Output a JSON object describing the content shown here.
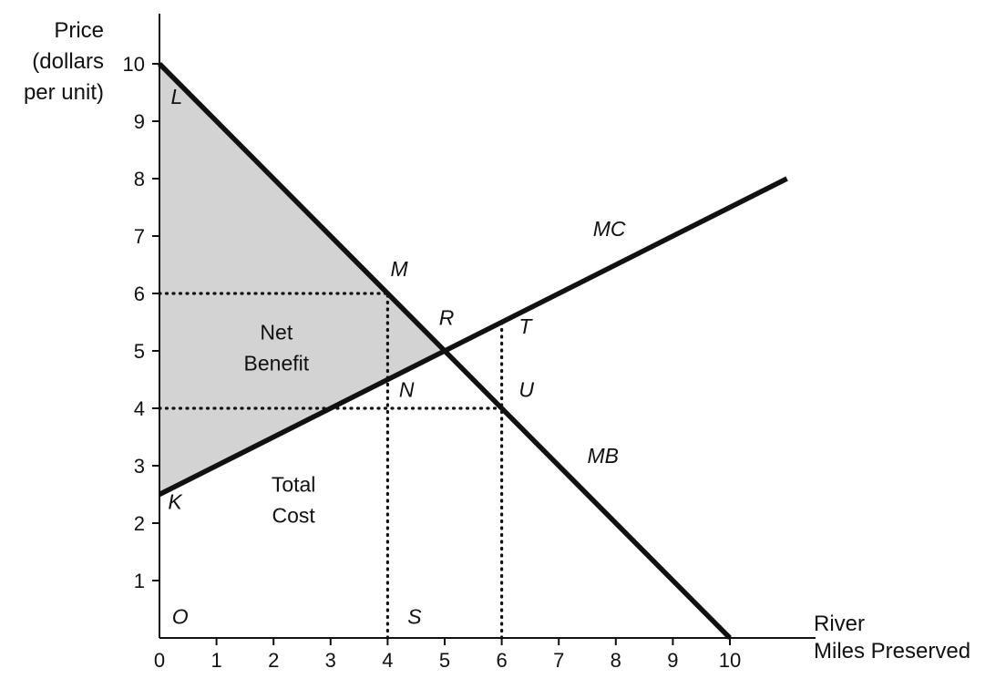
{
  "chart_data": {
    "type": "line",
    "ylabel_lines": [
      "Price",
      "(dollars",
      "per unit)"
    ],
    "xlabel_lines": [
      "River",
      "Miles Preserved"
    ],
    "xlim": [
      0,
      11
    ],
    "ylim": [
      0,
      10.8
    ],
    "x_ticks": [
      0,
      1,
      2,
      3,
      4,
      5,
      6,
      7,
      8,
      9,
      10
    ],
    "y_ticks": [
      1,
      2,
      3,
      4,
      5,
      6,
      7,
      8,
      9,
      10
    ],
    "series": [
      {
        "name": "MB",
        "x": [
          0,
          10
        ],
        "y": [
          10,
          0
        ]
      },
      {
        "name": "MC",
        "x": [
          0,
          11
        ],
        "y": [
          2.5,
          8
        ]
      }
    ],
    "dotted_lines": [
      {
        "x": [
          0,
          4
        ],
        "y": [
          6,
          6
        ]
      },
      {
        "x": [
          0,
          6
        ],
        "y": [
          4,
          4
        ]
      },
      {
        "x": [
          4,
          4
        ],
        "y": [
          0,
          6
        ]
      },
      {
        "x": [
          6,
          6
        ],
        "y": [
          0,
          5.5
        ]
      }
    ],
    "shaded_region": {
      "x": [
        0,
        5,
        0
      ],
      "y": [
        10,
        5,
        2.5
      ]
    },
    "point_labels": [
      {
        "text": "L",
        "x": 0.2,
        "y": 9.3
      },
      {
        "text": "M",
        "x": 4.05,
        "y": 6.3
      },
      {
        "text": "R",
        "x": 4.9,
        "y": 5.45
      },
      {
        "text": "T",
        "x": 6.3,
        "y": 5.3
      },
      {
        "text": "N",
        "x": 4.2,
        "y": 4.2
      },
      {
        "text": "U",
        "x": 6.3,
        "y": 4.2
      },
      {
        "text": "MC",
        "x": 7.6,
        "y": 7.0
      },
      {
        "text": "MB",
        "x": 7.5,
        "y": 3.05
      },
      {
        "text": "K",
        "x": 0.15,
        "y": 2.25
      },
      {
        "text": "O",
        "x": 0.22,
        "y": 0.25
      },
      {
        "text": "S",
        "x": 4.35,
        "y": 0.25
      }
    ],
    "area_labels": [
      {
        "lines": [
          "Net",
          "Benefit"
        ],
        "x": 2.05,
        "y": 5.2
      },
      {
        "lines": [
          "Total",
          "Cost"
        ],
        "x": 2.35,
        "y": 2.55
      }
    ]
  }
}
